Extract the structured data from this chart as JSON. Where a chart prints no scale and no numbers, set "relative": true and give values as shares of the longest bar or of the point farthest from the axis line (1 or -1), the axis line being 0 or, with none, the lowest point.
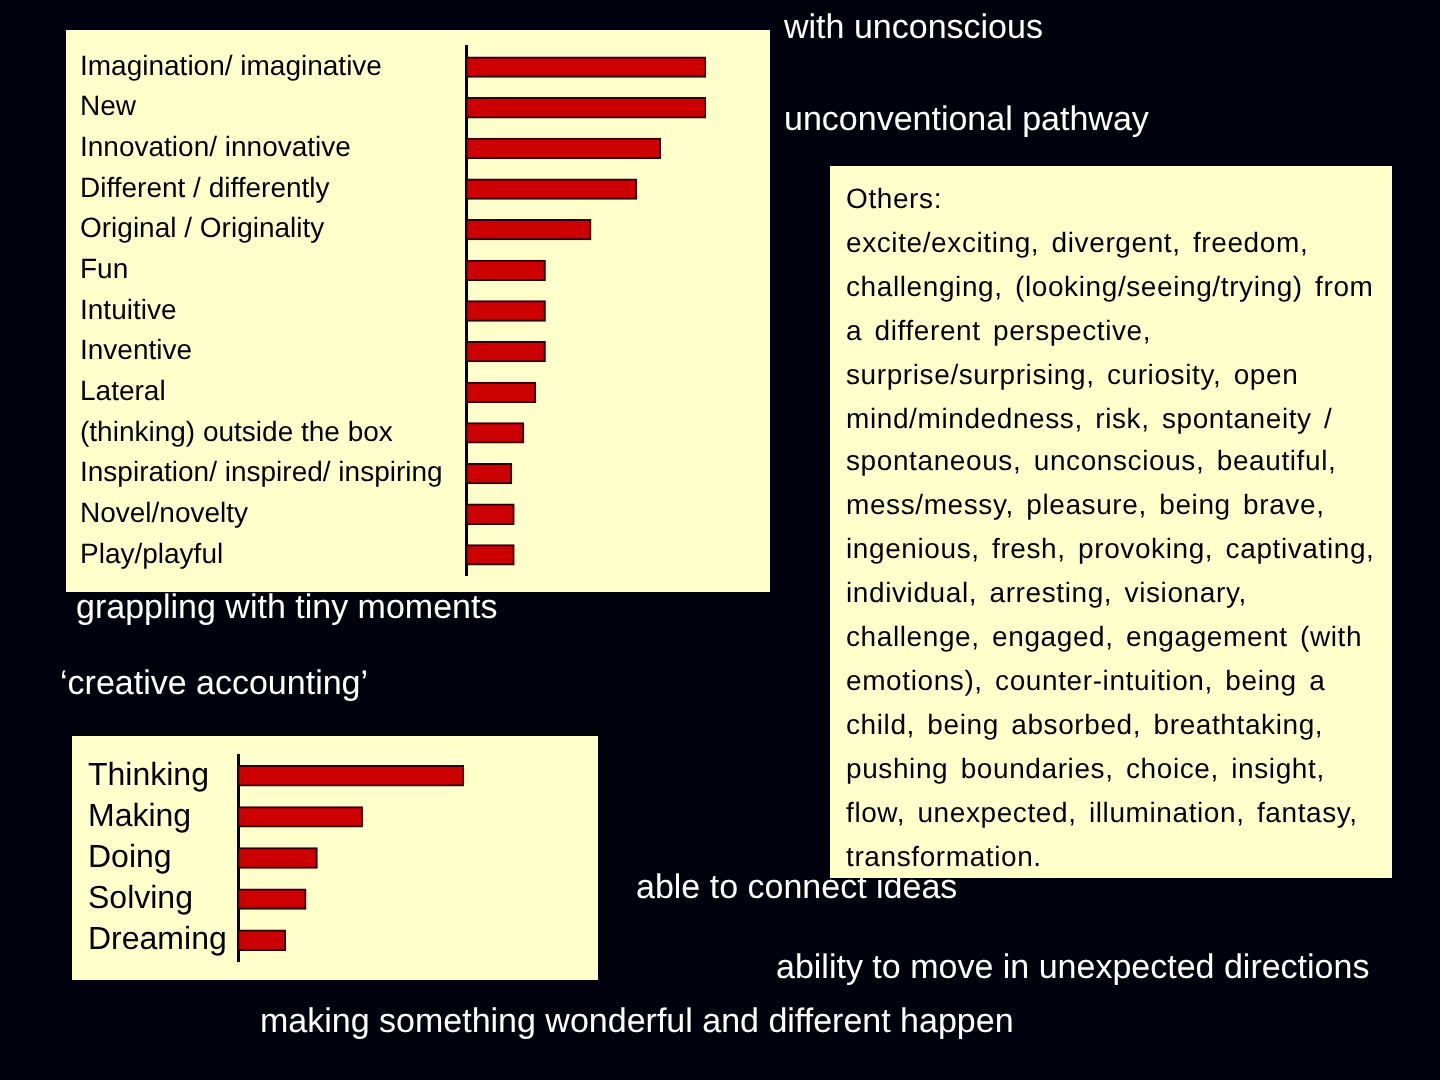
{
  "chart_data": [
    {
      "type": "bar",
      "orientation": "horizontal",
      "relative": true,
      "categories": [
        "Imagination/ imaginative",
        "New",
        "Innovation/ innovative",
        "Different / differently",
        "Original / Originality",
        "Fun",
        "Intuitive",
        "Inventive",
        "Lateral",
        "(thinking) outside the box",
        "Inspiration/ inspired/ inspiring",
        "Novel/novelty",
        "Play/playful"
      ],
      "values": [
        1,
        1,
        0.81,
        0.71,
        0.52,
        0.33,
        0.33,
        0.33,
        0.29,
        0.24,
        0.19,
        0.2,
        0.2
      ],
      "color": "#cc0000"
    },
    {
      "type": "bar",
      "orientation": "horizontal",
      "relative": true,
      "categories": [
        "Thinking",
        "Making",
        "Doing",
        "Solving",
        "Dreaming"
      ],
      "values": [
        1,
        0.55,
        0.35,
        0.3,
        0.21
      ],
      "color": "#cc0000"
    },
    {
      "type": "other",
      "title": "Others:",
      "annotations": [
        "excite/exciting, divergent, freedom, challenging, (looking/seeing/trying) from a different perspective, surprise/surprising, curiosity, open mind/mindedness, risk, spontaneity / spontaneous, unconscious, beautiful, mess/messy, pleasure, being brave, ingenious, fresh, provoking, captivating, individual, arresting, visionary, challenge, engaged, engagement (with emotions), counter-intuition, being a child, being absorbed, breathtaking, pushing boundaries, choice, insight, flow, unexpected, illumination, fantasy, transformation."
      ]
    },
    {
      "type": "other",
      "annotations": [
        "with unconscious",
        "unconventional pathway",
        "grappling with tiny moments",
        "‘creative accounting’",
        "able to connect ideas",
        "ability to move in unexpected directions",
        "making something wonderful and different happen"
      ]
    }
  ]
}
